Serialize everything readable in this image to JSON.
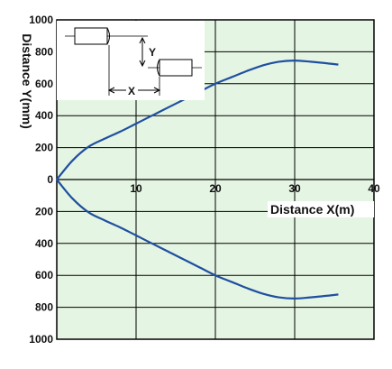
{
  "chart_data": {
    "type": "line",
    "xlabel": "Distance X(m)",
    "ylabel": "Distance Y(mm)",
    "xlim": [
      0,
      40
    ],
    "ylim": [
      -1000,
      1000
    ],
    "x_ticks": [
      {
        "value": 10,
        "label": "10"
      },
      {
        "value": 20,
        "label": "20"
      },
      {
        "value": 30,
        "label": "30"
      },
      {
        "value": 40,
        "label": "40"
      }
    ],
    "y_ticks": [
      {
        "value": 1000,
        "label": "1000"
      },
      {
        "value": 800,
        "label": "800"
      },
      {
        "value": 600,
        "label": "600"
      },
      {
        "value": 400,
        "label": "400"
      },
      {
        "value": 200,
        "label": "200"
      },
      {
        "value": 0,
        "label": "0"
      },
      {
        "value": -200,
        "label": "200"
      },
      {
        "value": -400,
        "label": "400"
      },
      {
        "value": -600,
        "label": "600"
      },
      {
        "value": -800,
        "label": "800"
      },
      {
        "value": -1000,
        "label": "1000"
      }
    ],
    "grid": true,
    "colors": {
      "plot_bg": "#e5f5e3",
      "line": "#1f4fa0",
      "grid": "#000000"
    },
    "series": [
      {
        "x": [
          0,
          2,
          4,
          6,
          8,
          10,
          12,
          14,
          16,
          18,
          20,
          22,
          24,
          26,
          28,
          30,
          32,
          34,
          35.5
        ],
        "values": [
          0,
          120,
          205,
          255,
          300,
          350,
          400,
          450,
          500,
          550,
          600,
          640,
          680,
          715,
          738,
          745,
          738,
          728,
          720
        ]
      },
      {
        "x": [
          0,
          2,
          4,
          6,
          8,
          10,
          12,
          14,
          16,
          18,
          20,
          22,
          24,
          26,
          28,
          30,
          32,
          34,
          35.5
        ],
        "values": [
          0,
          -120,
          -205,
          -255,
          -300,
          -350,
          -400,
          -450,
          -500,
          -550,
          -600,
          -640,
          -680,
          -715,
          -738,
          -745,
          -738,
          -728,
          -720
        ]
      }
    ]
  },
  "inset": {
    "y_label": "Y",
    "x_label": "X"
  }
}
